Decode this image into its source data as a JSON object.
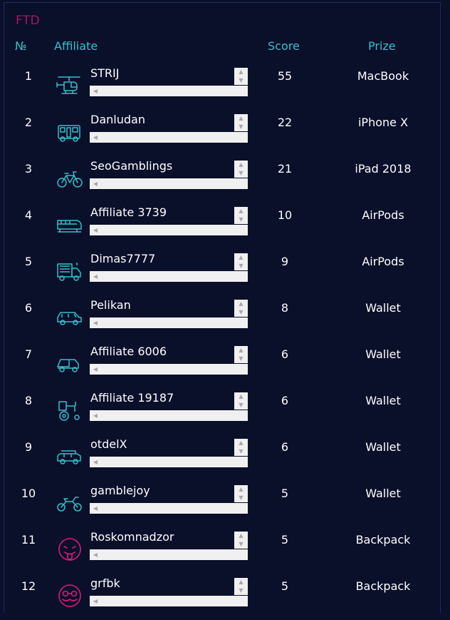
{
  "section": {
    "title": "FTD"
  },
  "columns": {
    "num": "№",
    "affiliate": "Affiliate",
    "score": "Score",
    "prize": "Prize"
  },
  "colors": {
    "accent": "#35c0c9",
    "title": "#a21a64",
    "background": "#0a0f2a",
    "emoji": "#d81b7a"
  },
  "rows": [
    {
      "num": "1",
      "name": "STRIJ",
      "score": "55",
      "prize": "MacBook",
      "icon": "helicopter-icon"
    },
    {
      "num": "2",
      "name": "Danludan",
      "score": "22",
      "prize": "iPhone X",
      "icon": "camper-van-icon"
    },
    {
      "num": "3",
      "name": "SeoGamblings",
      "score": "21",
      "prize": "iPad 2018",
      "icon": "bicycle-icon"
    },
    {
      "num": "4",
      "name": "Affiliate 3739",
      "score": "10",
      "prize": "AirPods",
      "icon": "train-icon"
    },
    {
      "num": "5",
      "name": "Dimas7777",
      "score": "9",
      "prize": "AirPods",
      "icon": "fire-truck-icon"
    },
    {
      "num": "6",
      "name": "Pelikan",
      "score": "8",
      "prize": "Wallet",
      "icon": "suv-icon"
    },
    {
      "num": "7",
      "name": "Affiliate 6006",
      "score": "6",
      "prize": "Wallet",
      "icon": "dump-truck-icon"
    },
    {
      "num": "8",
      "name": "Affiliate 19187",
      "score": "6",
      "prize": "Wallet",
      "icon": "tractor-icon"
    },
    {
      "num": "9",
      "name": "otdelX",
      "score": "6",
      "prize": "Wallet",
      "icon": "jeep-icon"
    },
    {
      "num": "10",
      "name": "gamblejoy",
      "score": "5",
      "prize": "Wallet",
      "icon": "motorcycle-icon"
    },
    {
      "num": "11",
      "name": "Roskomnadzor",
      "score": "5",
      "prize": "Backpack",
      "icon": "tongue-emoji-icon"
    },
    {
      "num": "12",
      "name": "grfbk",
      "score": "5",
      "prize": "Backpack",
      "icon": "mustache-emoji-icon"
    }
  ]
}
